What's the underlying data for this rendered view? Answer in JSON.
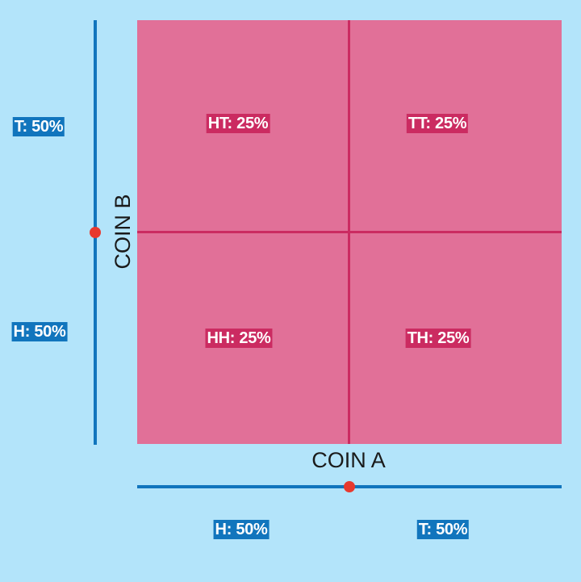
{
  "coin_a": {
    "title": "COIN A",
    "outcomes": [
      "H: 50%",
      "T: 50%"
    ]
  },
  "coin_b": {
    "title": "COIN B",
    "outcomes": [
      "T: 50%",
      "H: 50%"
    ]
  },
  "cells": {
    "ht": "HT: 25%",
    "tt": "TT: 25%",
    "hh": "HH: 25%",
    "th": "TH: 25%"
  },
  "colors": {
    "background": "#b3e4fa",
    "grid_fill": "#e17098",
    "grid_lines": "#cb2b61",
    "axis": "#1175bd",
    "marker": "#e8392e"
  }
}
